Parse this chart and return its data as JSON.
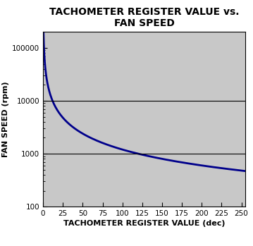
{
  "title": "TACHOMETER REGISTER VALUE vs.\nFAN SPEED",
  "xlabel": "TACHOMETER REGISTER VALUE (dec)",
  "ylabel": "FAN SPEED (rpm)",
  "background_color": "#c8c8c8",
  "outer_background": "#ffffff",
  "line_color": "#00008B",
  "line_width": 2.0,
  "xlim": [
    0,
    255
  ],
  "ylim": [
    100,
    200000
  ],
  "xticks": [
    0,
    25,
    50,
    75,
    100,
    125,
    150,
    175,
    200,
    225,
    250
  ],
  "yticks": [
    100,
    1000,
    10000,
    100000
  ],
  "ytick_labels": [
    "100",
    "1000",
    "10000",
    "100000"
  ],
  "hlines": [
    1000,
    10000
  ],
  "title_fontsize": 10,
  "label_fontsize": 8,
  "tick_fontsize": 7.5,
  "curve_constant": 120000
}
